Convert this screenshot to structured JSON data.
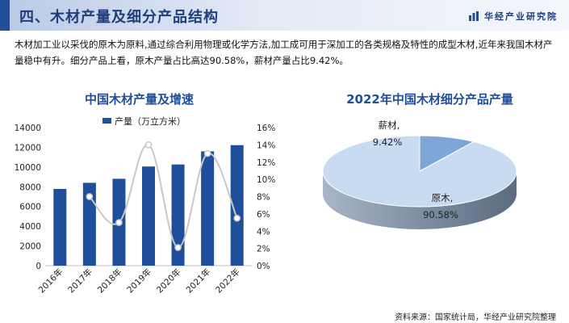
{
  "header": {
    "title": "四、木材产量及细分产品结构",
    "brand": "华经产业研究院",
    "accent_color": "#1f4e9a"
  },
  "intro_text": "木材加工业以采伐的原木为原料,通过综合利用物理或化学方法,加工成可用于深加工的各类规格及特性的成型木材,近年来我国木材产量稳中有升。细分产品上看，原木产量占比高达90.58%，薪材产量占比9.42%。",
  "source_text": "资料来源：国家统计局，华经产业研究院整理",
  "chart_data": [
    {
      "type": "bar",
      "title": "中国木材产量及增速",
      "categories": [
        "2016年",
        "2017年",
        "2018年",
        "2019年",
        "2020年",
        "2021年",
        "2022年"
      ],
      "series": [
        {
          "name": "产量（万立方米）",
          "type": "bar",
          "axis": "left",
          "color": "#1f4e9a",
          "values": [
            7780,
            8400,
            8810,
            10050,
            10260,
            11590,
            12220
          ]
        },
        {
          "type": "line",
          "axis": "right",
          "color": "#c8c8c8",
          "values": [
            null,
            0.08,
            0.05,
            0.14,
            0.021,
            0.13,
            0.055
          ]
        }
      ],
      "y_left": {
        "min": 0,
        "max": 14000,
        "ticks": [
          "0",
          "2000",
          "4000",
          "6000",
          "8000",
          "10000",
          "12000",
          "14000"
        ]
      },
      "y_right": {
        "min": 0,
        "max": 0.16,
        "ticks": [
          "0%",
          "2%",
          "4%",
          "6%",
          "8%",
          "10%",
          "12%",
          "14%",
          "16%"
        ]
      },
      "legend_position": "top-left"
    },
    {
      "type": "pie",
      "title": "2022年中国木材细分产品产量",
      "slices": [
        {
          "label": "原木",
          "value": 90.58,
          "value_text": "90.58%",
          "color": "#c9dbf1"
        },
        {
          "label": "薪材",
          "value": 9.42,
          "value_text": "9.42%",
          "color": "#7ea6d6"
        }
      ],
      "style": "3d"
    }
  ]
}
